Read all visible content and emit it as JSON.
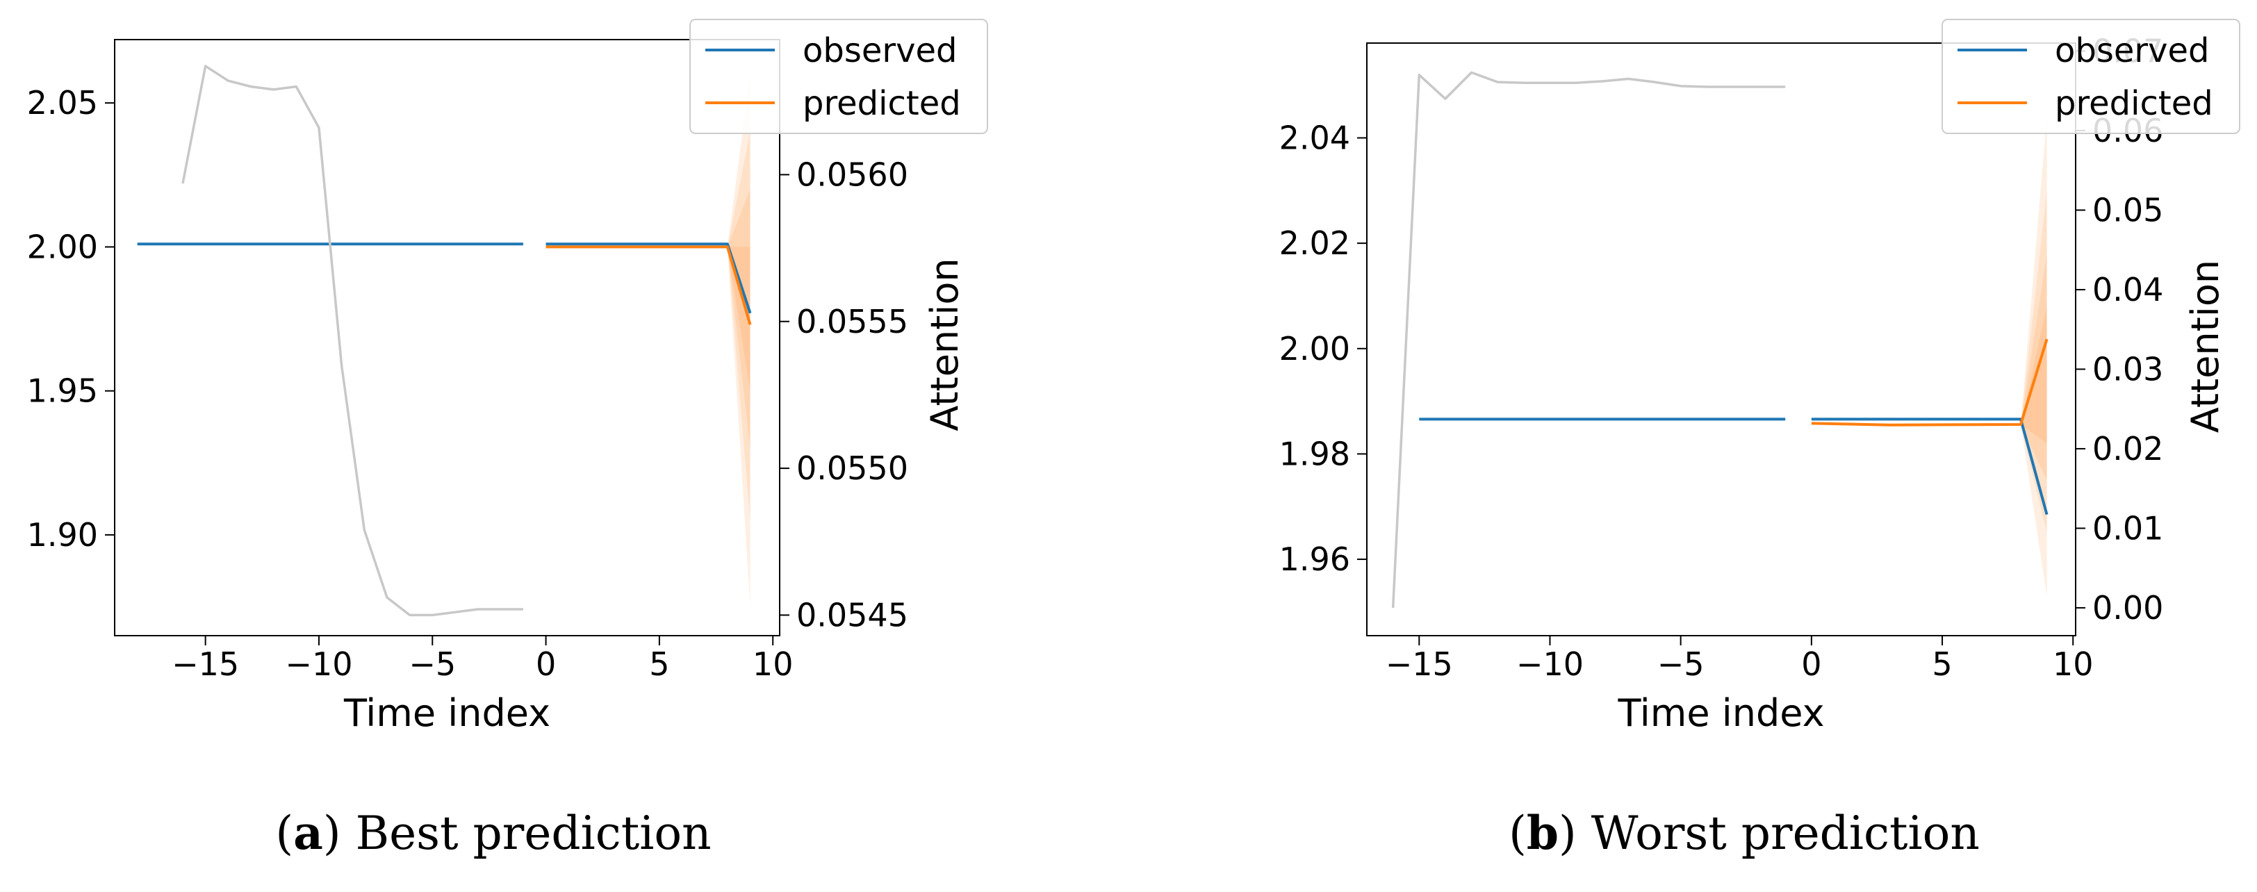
{
  "chart_data": [
    {
      "type": "line",
      "caption_letter": "a",
      "caption_text": "Best prediction",
      "xlabel": "Time index",
      "ylabel": "",
      "y2label": "Attention",
      "xlim": [
        -19,
        10.3
      ],
      "ylim": [
        1.865,
        2.072
      ],
      "y2lim": [
        0.05443,
        0.05646
      ],
      "xticks": [
        -15,
        -10,
        -5,
        0,
        5,
        10
      ],
      "yticks": [
        1.9,
        1.95,
        2.0,
        2.05
      ],
      "y2ticks": [
        0.0545,
        0.055,
        0.0555,
        0.056
      ],
      "ytick_labels": [
        "1.90",
        "1.95",
        "2.00",
        "2.05"
      ],
      "y2tick_labels": [
        "0.0545",
        "0.0550",
        "0.0555",
        "0.0560"
      ],
      "xtick_labels": [
        "−15",
        "−10",
        "−5",
        "0",
        "5",
        "10"
      ],
      "legend": {
        "placement": "top-right",
        "entries": [
          "observed",
          "predicted"
        ]
      },
      "colors": {
        "observed": "#1f77b4",
        "predicted": "#ff7f0e",
        "attention": "#c8c8c8",
        "band": "#ff7f0e"
      },
      "series": [
        {
          "name": "observed",
          "axis": "left",
          "x": [
            -18,
            -1
          ],
          "y": [
            2.001,
            2.001
          ]
        },
        {
          "name": "observed",
          "axis": "left",
          "x": [
            0,
            8,
            9
          ],
          "y": [
            2.001,
            2.001,
            1.977
          ]
        },
        {
          "name": "predicted",
          "axis": "left",
          "x": [
            0,
            8,
            9
          ],
          "y": [
            2.0,
            2.0,
            1.973
          ]
        },
        {
          "name": "attention",
          "axis": "right",
          "x": [
            -16,
            -15,
            -14,
            -13,
            -12,
            -11,
            -10,
            -9,
            -8,
            -7,
            -6,
            -5,
            -4,
            -3,
            -2,
            -1
          ],
          "y": [
            0.05597,
            0.05637,
            0.05632,
            0.0563,
            0.05629,
            0.0563,
            0.05616,
            0.05535,
            0.05479,
            0.05456,
            0.0545,
            0.0545,
            0.05451,
            0.05452,
            0.05452,
            0.05452
          ]
        }
      ],
      "band": {
        "x": [
          8,
          9
        ],
        "quantiles": [
          {
            "lower": [
              2.0,
              1.876
            ],
            "upper": [
              2.0,
              2.06
            ]
          },
          {
            "lower": [
              2.0,
              1.905
            ],
            "upper": [
              2.0,
              2.04
            ]
          },
          {
            "lower": [
              2.0,
              1.93
            ],
            "upper": [
              2.0,
              2.02
            ]
          },
          {
            "lower": [
              2.0,
              1.95
            ],
            "upper": [
              2.0,
              2.0
            ]
          }
        ]
      }
    },
    {
      "type": "line",
      "caption_letter": "b",
      "caption_text": "Worst prediction",
      "xlabel": "Time index",
      "ylabel": "",
      "y2label": "Attention",
      "xlim": [
        -17,
        10.1
      ],
      "ylim": [
        1.9455,
        2.058
      ],
      "y2lim": [
        -0.0035,
        0.071
      ],
      "xticks": [
        -15,
        -10,
        -5,
        0,
        5,
        10
      ],
      "yticks": [
        1.96,
        1.98,
        2.0,
        2.02,
        2.04
      ],
      "y2ticks": [
        0.0,
        0.01,
        0.02,
        0.03,
        0.04,
        0.05,
        0.06,
        0.07
      ],
      "ytick_labels": [
        "1.96",
        "1.98",
        "2.00",
        "2.02",
        "2.04"
      ],
      "y2tick_labels": [
        "0.00",
        "0.01",
        "0.02",
        "0.03",
        "0.04",
        "0.05",
        "0.06",
        "0.07"
      ],
      "xtick_labels": [
        "−15",
        "−10",
        "−5",
        "0",
        "5",
        "10"
      ],
      "legend": {
        "placement": "top-right",
        "entries": [
          "observed",
          "predicted"
        ]
      },
      "colors": {
        "observed": "#1f77b4",
        "predicted": "#ff7f0e",
        "attention": "#c8c8c8",
        "band": "#ff7f0e"
      },
      "series": [
        {
          "name": "observed",
          "axis": "left",
          "x": [
            -15,
            -1
          ],
          "y": [
            1.9866,
            1.9866
          ]
        },
        {
          "name": "observed",
          "axis": "left",
          "x": [
            0,
            8,
            9
          ],
          "y": [
            1.9866,
            1.9866,
            1.9685
          ]
        },
        {
          "name": "predicted",
          "axis": "left",
          "x": [
            0,
            3,
            8,
            9
          ],
          "y": [
            1.9858,
            1.9855,
            1.9856,
            2.0018
          ]
        },
        {
          "name": "attention",
          "axis": "right",
          "x": [
            -16,
            -15,
            -14,
            -13,
            -12,
            -11,
            -10,
            -9,
            -8,
            -7,
            -6,
            -5,
            -4,
            -3,
            -2,
            -1
          ],
          "y": [
            0.0,
            0.067,
            0.064,
            0.0673,
            0.0661,
            0.066,
            0.066,
            0.066,
            0.0662,
            0.0665,
            0.0661,
            0.0656,
            0.0655,
            0.0655,
            0.0655,
            0.0655
          ]
        }
      ],
      "band": {
        "x": [
          8,
          9
        ],
        "quantiles": [
          {
            "lower": [
              1.9856,
              1.953
            ],
            "upper": [
              1.9856,
              2.044
            ]
          },
          {
            "lower": [
              1.9856,
              1.965
            ],
            "upper": [
              1.9856,
              2.03
            ]
          },
          {
            "lower": [
              1.9856,
              1.975
            ],
            "upper": [
              1.9856,
              2.018
            ]
          },
          {
            "lower": [
              1.9856,
              1.982
            ],
            "upper": [
              1.9856,
              2.008
            ]
          }
        ]
      }
    }
  ]
}
